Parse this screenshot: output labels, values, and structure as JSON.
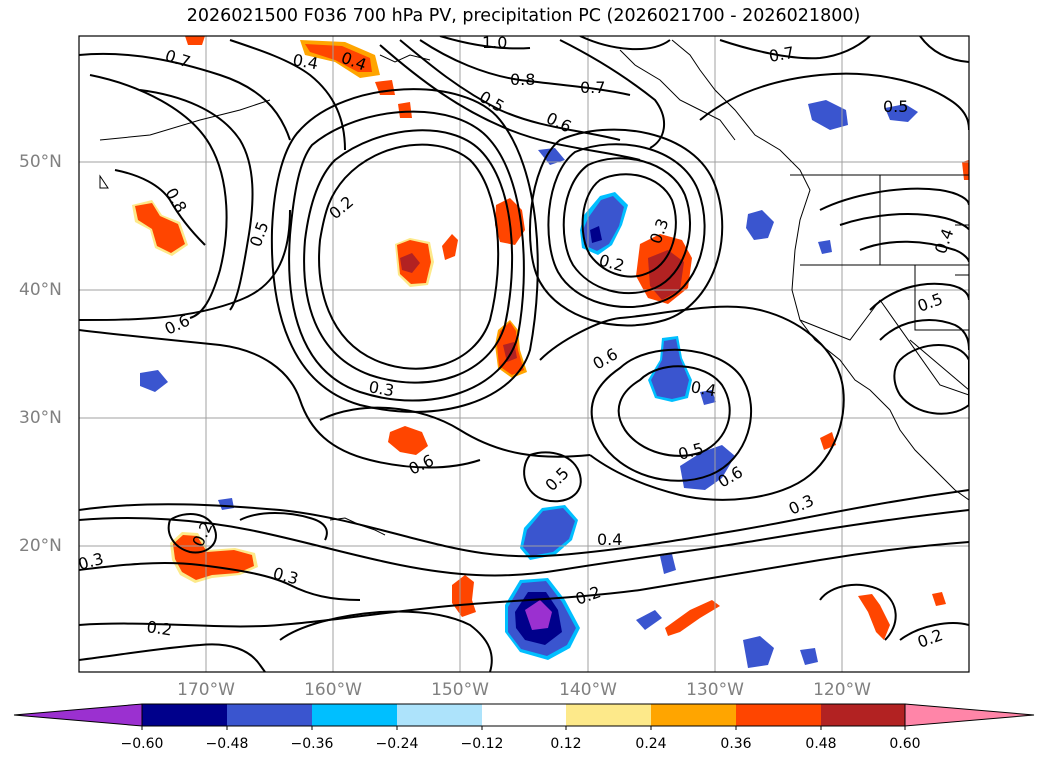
{
  "title": "2026021500 F036 700 hPa PV, precipitation PC (2026021700 - 2026021800)",
  "map": {
    "lat_labels": [
      "50°N",
      "40°N",
      "30°N",
      "20°N"
    ],
    "lon_labels": [
      "170°W",
      "160°W",
      "150°W",
      "140°W",
      "130°W",
      "120°W"
    ],
    "gridline_color": "#a0a0a0",
    "contour_color": "#000000"
  },
  "contours": {
    "field": "700 hPa PV",
    "labels": [
      "0.7",
      "0.4",
      "0.4",
      "1.0",
      "0.8",
      "0.5",
      "0.6",
      "0.7",
      "0.7",
      "0.5",
      "0.8",
      "0.5",
      "0.2",
      "0.2",
      "0.3",
      "0.6",
      "0.3",
      "0.6",
      "0.6",
      "0.4",
      "0.5",
      "0.5",
      "0.6",
      "0.3",
      "0.4",
      "0.2",
      "0.2",
      "0.3",
      "0.3",
      "0.2",
      "0.2",
      "0.4",
      "0.5"
    ]
  },
  "colorbar": {
    "ticks": [
      "−0.60",
      "−0.48",
      "−0.36",
      "−0.24",
      "−0.12",
      "0.12",
      "0.24",
      "0.36",
      "0.48",
      "0.60"
    ],
    "colors": [
      "#9b30d0",
      "#00008b",
      "#3a55cf",
      "#00bfff",
      "#ade3fb",
      "#ffffff",
      "#fde98a",
      "#ffa500",
      "#ff4500",
      "#b22222",
      "#ff85a8"
    ]
  }
}
